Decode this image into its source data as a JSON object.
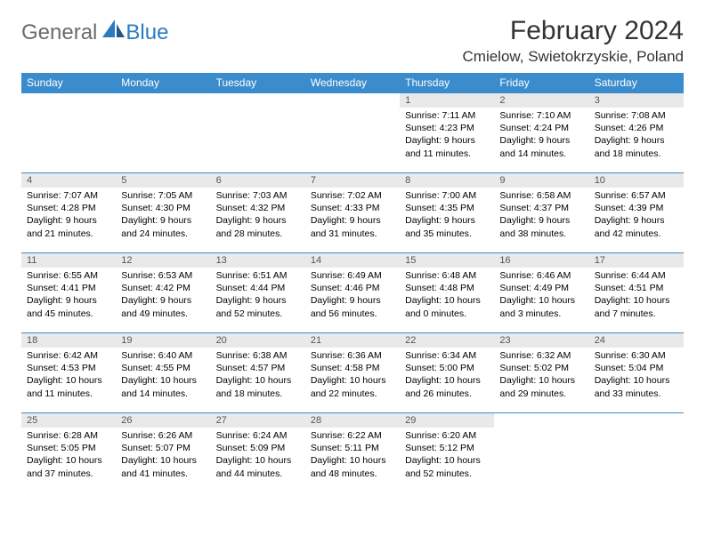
{
  "brand": {
    "part1": "General",
    "part2": "Blue"
  },
  "title": {
    "month": "February 2024",
    "location": "Cmielow, Swietokrzyskie, Poland"
  },
  "colors": {
    "header_bg": "#3b8ccc",
    "header_text": "#ffffff",
    "daynum_bg": "#e9e9e9",
    "border": "#3b8ccc",
    "brand_gray": "#6b6b6b",
    "brand_blue": "#2b7bbf"
  },
  "columns": [
    "Sunday",
    "Monday",
    "Tuesday",
    "Wednesday",
    "Thursday",
    "Friday",
    "Saturday"
  ],
  "weeks": [
    [
      {
        "day": ""
      },
      {
        "day": ""
      },
      {
        "day": ""
      },
      {
        "day": ""
      },
      {
        "day": "1",
        "sunrise": "Sunrise: 7:11 AM",
        "sunset": "Sunset: 4:23 PM",
        "daylight": "Daylight: 9 hours and 11 minutes."
      },
      {
        "day": "2",
        "sunrise": "Sunrise: 7:10 AM",
        "sunset": "Sunset: 4:24 PM",
        "daylight": "Daylight: 9 hours and 14 minutes."
      },
      {
        "day": "3",
        "sunrise": "Sunrise: 7:08 AM",
        "sunset": "Sunset: 4:26 PM",
        "daylight": "Daylight: 9 hours and 18 minutes."
      }
    ],
    [
      {
        "day": "4",
        "sunrise": "Sunrise: 7:07 AM",
        "sunset": "Sunset: 4:28 PM",
        "daylight": "Daylight: 9 hours and 21 minutes."
      },
      {
        "day": "5",
        "sunrise": "Sunrise: 7:05 AM",
        "sunset": "Sunset: 4:30 PM",
        "daylight": "Daylight: 9 hours and 24 minutes."
      },
      {
        "day": "6",
        "sunrise": "Sunrise: 7:03 AM",
        "sunset": "Sunset: 4:32 PM",
        "daylight": "Daylight: 9 hours and 28 minutes."
      },
      {
        "day": "7",
        "sunrise": "Sunrise: 7:02 AM",
        "sunset": "Sunset: 4:33 PM",
        "daylight": "Daylight: 9 hours and 31 minutes."
      },
      {
        "day": "8",
        "sunrise": "Sunrise: 7:00 AM",
        "sunset": "Sunset: 4:35 PM",
        "daylight": "Daylight: 9 hours and 35 minutes."
      },
      {
        "day": "9",
        "sunrise": "Sunrise: 6:58 AM",
        "sunset": "Sunset: 4:37 PM",
        "daylight": "Daylight: 9 hours and 38 minutes."
      },
      {
        "day": "10",
        "sunrise": "Sunrise: 6:57 AM",
        "sunset": "Sunset: 4:39 PM",
        "daylight": "Daylight: 9 hours and 42 minutes."
      }
    ],
    [
      {
        "day": "11",
        "sunrise": "Sunrise: 6:55 AM",
        "sunset": "Sunset: 4:41 PM",
        "daylight": "Daylight: 9 hours and 45 minutes."
      },
      {
        "day": "12",
        "sunrise": "Sunrise: 6:53 AM",
        "sunset": "Sunset: 4:42 PM",
        "daylight": "Daylight: 9 hours and 49 minutes."
      },
      {
        "day": "13",
        "sunrise": "Sunrise: 6:51 AM",
        "sunset": "Sunset: 4:44 PM",
        "daylight": "Daylight: 9 hours and 52 minutes."
      },
      {
        "day": "14",
        "sunrise": "Sunrise: 6:49 AM",
        "sunset": "Sunset: 4:46 PM",
        "daylight": "Daylight: 9 hours and 56 minutes."
      },
      {
        "day": "15",
        "sunrise": "Sunrise: 6:48 AM",
        "sunset": "Sunset: 4:48 PM",
        "daylight": "Daylight: 10 hours and 0 minutes."
      },
      {
        "day": "16",
        "sunrise": "Sunrise: 6:46 AM",
        "sunset": "Sunset: 4:49 PM",
        "daylight": "Daylight: 10 hours and 3 minutes."
      },
      {
        "day": "17",
        "sunrise": "Sunrise: 6:44 AM",
        "sunset": "Sunset: 4:51 PM",
        "daylight": "Daylight: 10 hours and 7 minutes."
      }
    ],
    [
      {
        "day": "18",
        "sunrise": "Sunrise: 6:42 AM",
        "sunset": "Sunset: 4:53 PM",
        "daylight": "Daylight: 10 hours and 11 minutes."
      },
      {
        "day": "19",
        "sunrise": "Sunrise: 6:40 AM",
        "sunset": "Sunset: 4:55 PM",
        "daylight": "Daylight: 10 hours and 14 minutes."
      },
      {
        "day": "20",
        "sunrise": "Sunrise: 6:38 AM",
        "sunset": "Sunset: 4:57 PM",
        "daylight": "Daylight: 10 hours and 18 minutes."
      },
      {
        "day": "21",
        "sunrise": "Sunrise: 6:36 AM",
        "sunset": "Sunset: 4:58 PM",
        "daylight": "Daylight: 10 hours and 22 minutes."
      },
      {
        "day": "22",
        "sunrise": "Sunrise: 6:34 AM",
        "sunset": "Sunset: 5:00 PM",
        "daylight": "Daylight: 10 hours and 26 minutes."
      },
      {
        "day": "23",
        "sunrise": "Sunrise: 6:32 AM",
        "sunset": "Sunset: 5:02 PM",
        "daylight": "Daylight: 10 hours and 29 minutes."
      },
      {
        "day": "24",
        "sunrise": "Sunrise: 6:30 AM",
        "sunset": "Sunset: 5:04 PM",
        "daylight": "Daylight: 10 hours and 33 minutes."
      }
    ],
    [
      {
        "day": "25",
        "sunrise": "Sunrise: 6:28 AM",
        "sunset": "Sunset: 5:05 PM",
        "daylight": "Daylight: 10 hours and 37 minutes."
      },
      {
        "day": "26",
        "sunrise": "Sunrise: 6:26 AM",
        "sunset": "Sunset: 5:07 PM",
        "daylight": "Daylight: 10 hours and 41 minutes."
      },
      {
        "day": "27",
        "sunrise": "Sunrise: 6:24 AM",
        "sunset": "Sunset: 5:09 PM",
        "daylight": "Daylight: 10 hours and 44 minutes."
      },
      {
        "day": "28",
        "sunrise": "Sunrise: 6:22 AM",
        "sunset": "Sunset: 5:11 PM",
        "daylight": "Daylight: 10 hours and 48 minutes."
      },
      {
        "day": "29",
        "sunrise": "Sunrise: 6:20 AM",
        "sunset": "Sunset: 5:12 PM",
        "daylight": "Daylight: 10 hours and 52 minutes."
      },
      {
        "day": ""
      },
      {
        "day": ""
      }
    ]
  ]
}
